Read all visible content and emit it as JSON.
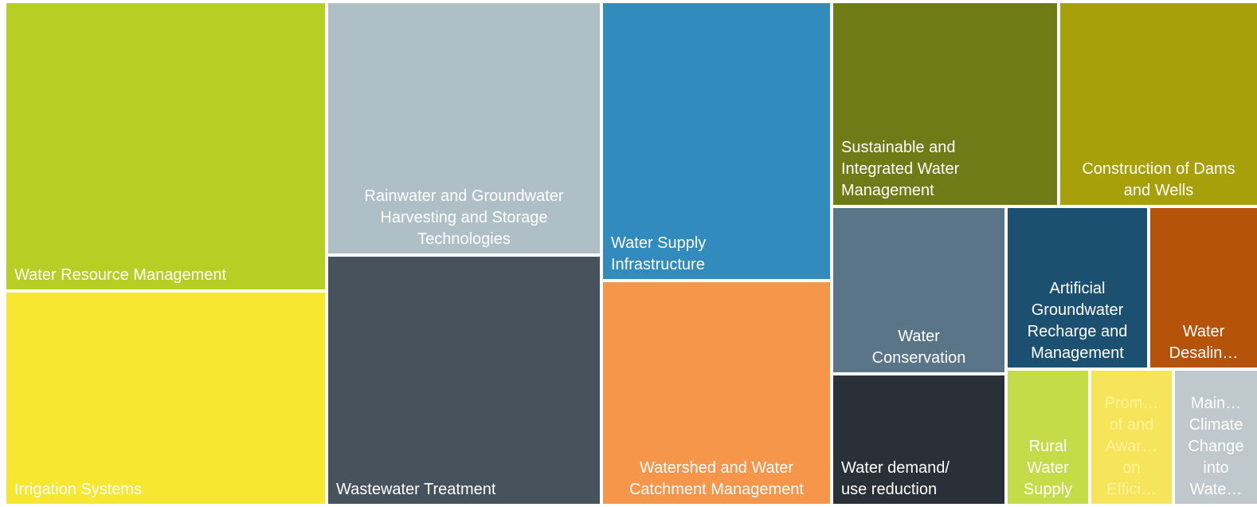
{
  "tiles": [
    {
      "lines": [
        "Water Resource Management"
      ],
      "color": "#b5cf25"
    },
    {
      "lines": [
        "Irrigation Systems"
      ],
      "color": "#f7e731"
    },
    {
      "lines": [
        "Rainwater and Groundwater",
        "Harvesting and Storage",
        "Technologies"
      ],
      "color": "#afbfc6"
    },
    {
      "lines": [
        "Wastewater Treatment"
      ],
      "color": "#47535c"
    },
    {
      "lines": [
        "Water Supply",
        "Infrastructure"
      ],
      "color": "#318bbd"
    },
    {
      "lines": [
        "Watershed and Water",
        "Catchment Management"
      ],
      "color": "#f5964a"
    },
    {
      "lines": [
        "Sustainable and",
        "Integrated Water",
        "Management"
      ],
      "color": "#6e7b17"
    },
    {
      "lines": [
        "Construction of Dams",
        "and Wells"
      ],
      "color": "#a8a00a"
    },
    {
      "lines": [
        "Water",
        "Conservation"
      ],
      "color": "#5a7587"
    },
    {
      "lines": [
        "Water demand/",
        "use reduction"
      ],
      "color": "#2a3037"
    },
    {
      "lines": [
        "Artificial",
        "Groundwater",
        "Recharge and",
        "Management"
      ],
      "color": "#1c5070"
    },
    {
      "lines": [
        "Water",
        "Desalin…"
      ],
      "color": "#b5530a"
    },
    {
      "lines": [
        "Rural",
        "Water",
        "Supply"
      ],
      "color": "#c5dc49"
    },
    {
      "lines": [
        "Prom…",
        "of and",
        "Awar…",
        "on",
        "Effici…"
      ],
      "color": "#f6e55b"
    },
    {
      "lines": [
        "Main…",
        "Climate",
        "Change",
        "into",
        "Wate…"
      ],
      "color": "#bec8cd"
    }
  ]
}
